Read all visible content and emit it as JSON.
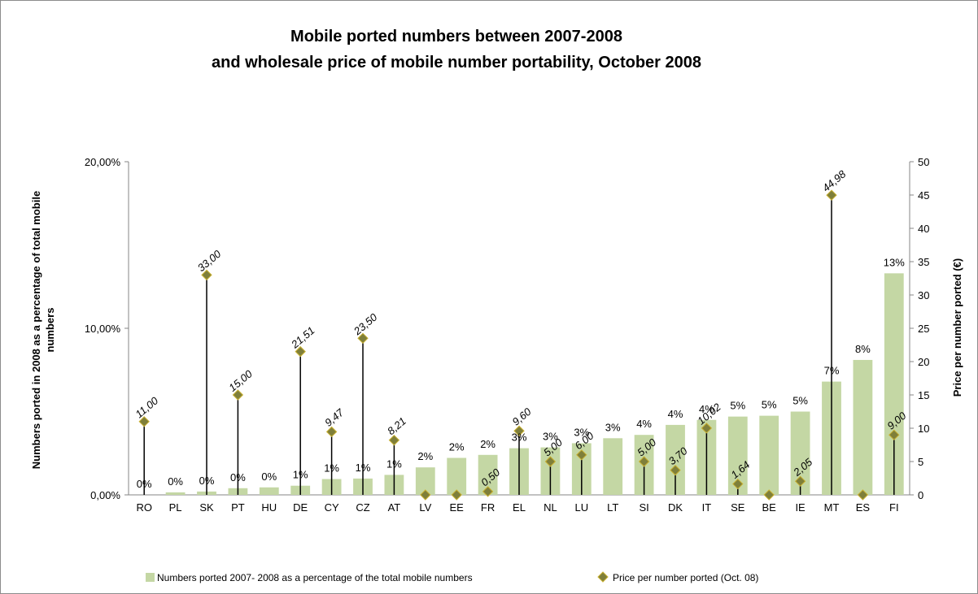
{
  "chart_data": {
    "type": "bar",
    "title": [
      "Mobile ported numbers between 2007-2008",
      "and wholesale price of mobile number portability, October 2008"
    ],
    "ylabel_left": [
      "Numbers ported in 2008 as a percentage of total mobile",
      "numbers"
    ],
    "ylabel_right": "Price per number ported (€)",
    "categories": [
      "RO",
      "PL",
      "SK",
      "PT",
      "HU",
      "DE",
      "CY",
      "CZ",
      "AT",
      "LV",
      "EE",
      "FR",
      "EL",
      "NL",
      "LU",
      "LT",
      "SI",
      "DK",
      "IT",
      "SE",
      "BE",
      "IE",
      "MT",
      "ES",
      "FI"
    ],
    "left_axis": {
      "min": 0,
      "max": 0.2,
      "ticks": [
        0,
        0.1,
        0.2
      ],
      "tick_labels": [
        "0,00%",
        "10,00%",
        "20,00%"
      ]
    },
    "right_axis": {
      "min": 0,
      "max": 50,
      "ticks": [
        0,
        5,
        10,
        15,
        20,
        25,
        30,
        35,
        40,
        45,
        50
      ],
      "tick_labels": [
        "0",
        "5",
        "10",
        "15",
        "20",
        "25",
        "30",
        "35",
        "40",
        "45",
        "50"
      ]
    },
    "series": [
      {
        "name": "Numbers ported 2007- 2008 as a percentage of the total mobile numbers",
        "kind": "bar",
        "axis": "left",
        "color": "#c4d7a4",
        "values": [
          0.0,
          0.0015,
          0.002,
          0.004,
          0.0045,
          0.0055,
          0.0095,
          0.0098,
          0.012,
          0.0165,
          0.0222,
          0.024,
          0.028,
          0.0285,
          0.031,
          0.034,
          0.036,
          0.042,
          0.045,
          0.047,
          0.0475,
          0.05,
          0.068,
          0.081,
          0.133
        ],
        "labels": [
          "0%",
          "0%",
          "0%",
          "0%",
          "0%",
          "1%",
          "1%",
          "1%",
          "1%",
          "2%",
          "2%",
          "2%",
          "3%",
          "3%",
          "3%",
          "3%",
          "4%",
          "4%",
          "4%",
          "5%",
          "5%",
          "5%",
          "7%",
          "8%",
          "13%"
        ]
      },
      {
        "name": "Price per number ported (Oct. 08)",
        "kind": "scatter-drop",
        "axis": "right",
        "color": "#7f7f3a",
        "values": [
          11.0,
          null,
          33.0,
          15.0,
          null,
          21.51,
          9.47,
          23.5,
          8.21,
          0,
          0,
          0.5,
          9.6,
          5.0,
          6.0,
          null,
          5.0,
          3.7,
          10.02,
          1.64,
          0,
          2.05,
          44.98,
          0,
          9.0
        ],
        "labels": [
          "11,00",
          "",
          "33,00",
          "15,00",
          "",
          "21,51",
          "9,47",
          "23,50",
          "8,21",
          "",
          "",
          "0,50",
          "9,60",
          "5,00",
          "6,00",
          "",
          "5,00",
          "3,70",
          "10,02",
          "1,64",
          "",
          "2,05",
          "44,98",
          "",
          "9,00"
        ]
      }
    ],
    "legend_position": "bottom",
    "grid": false
  }
}
